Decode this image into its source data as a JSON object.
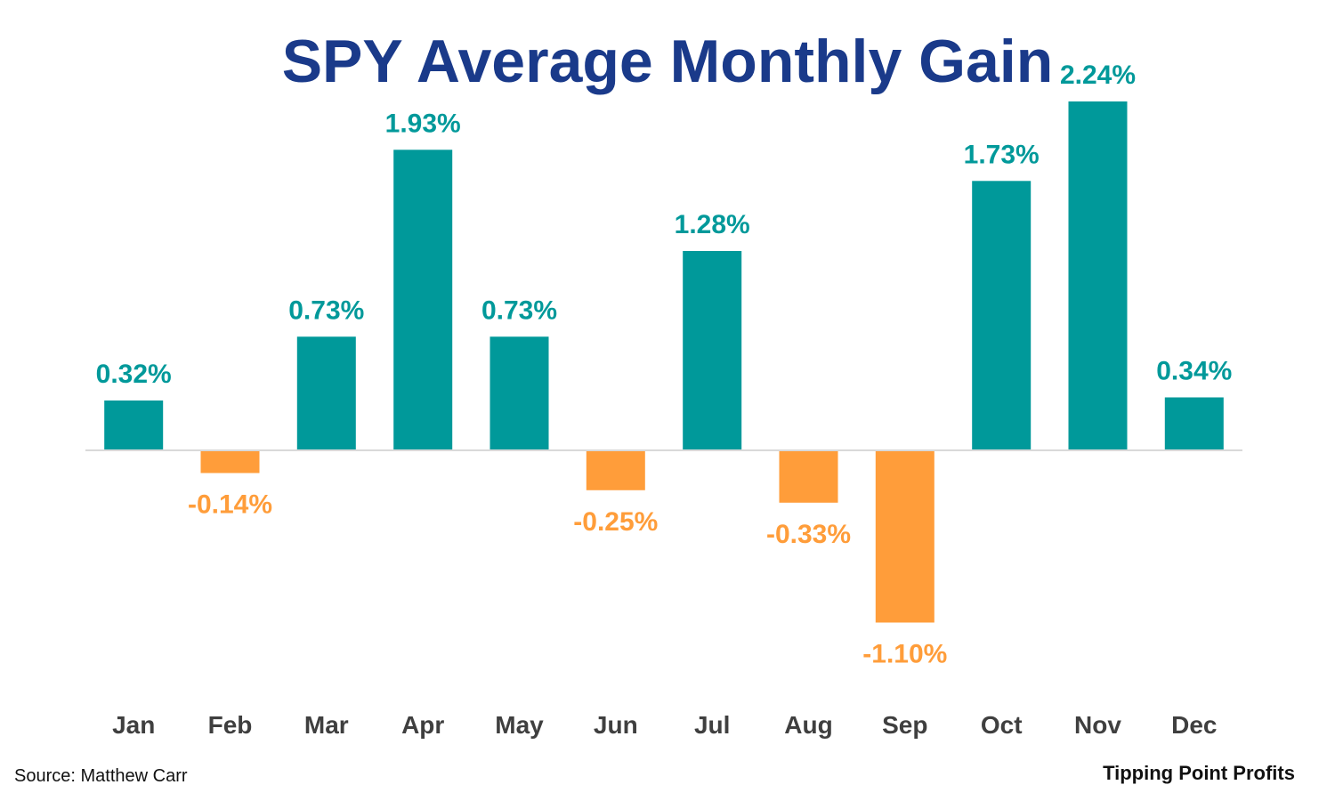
{
  "chart_data": {
    "type": "bar",
    "title": "SPY Average Monthly Gain",
    "categories": [
      "Jan",
      "Feb",
      "Mar",
      "Apr",
      "May",
      "Jun",
      "Jul",
      "Aug",
      "Sep",
      "Oct",
      "Nov",
      "Dec"
    ],
    "values": [
      0.32,
      -0.14,
      0.73,
      1.93,
      0.73,
      -0.25,
      1.28,
      -0.33,
      -1.1,
      1.73,
      2.24,
      0.34
    ],
    "data_labels": [
      "0.32%",
      "-0.14%",
      "0.73%",
      "1.93%",
      "0.73%",
      "-0.25%",
      "1.28%",
      "-0.33%",
      "-1.10%",
      "1.73%",
      "2.24%",
      "0.34%"
    ],
    "xlabel": "",
    "ylabel": "",
    "ylim": [
      -1.6,
      2.6
    ],
    "grid": false,
    "colors": {
      "positive": "#00999a",
      "negative": "#ff9d3a",
      "title": "#1a3a8a",
      "baseline": "#d9d9d9",
      "tick_text": "#3f3f3f"
    }
  },
  "footer": {
    "source": "Source: Matthew Carr",
    "brand": "Tipping Point Profits"
  }
}
